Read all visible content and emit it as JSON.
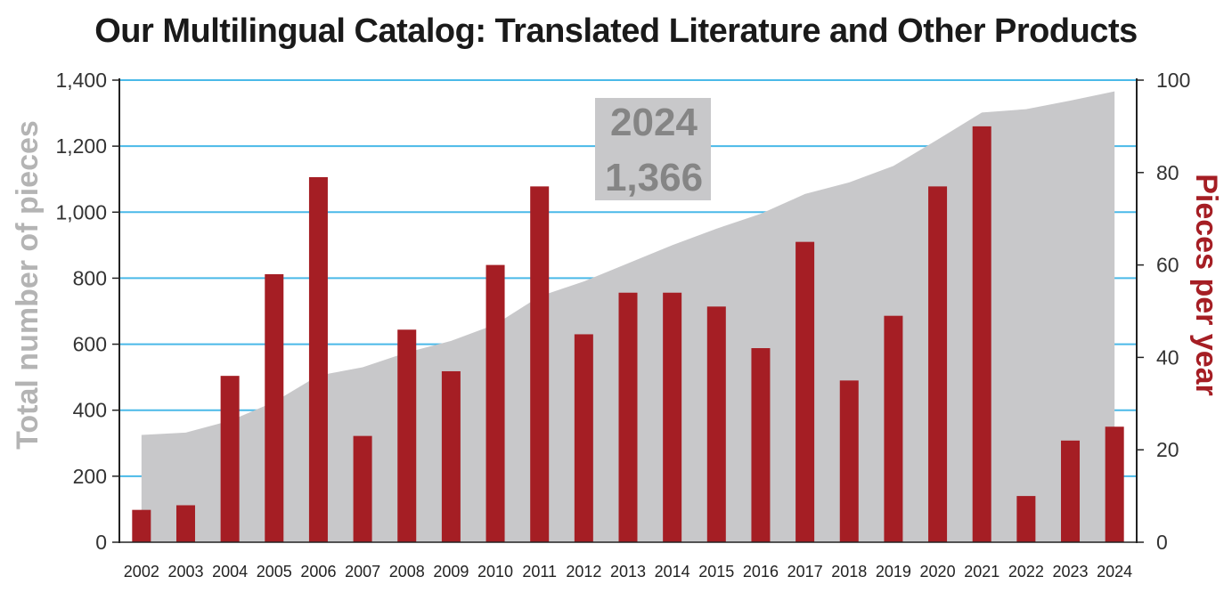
{
  "chart_data": {
    "type": "bar",
    "title": "Our Multilingual Catalog: Translated Literature and Other Products",
    "categories": [
      "2002",
      "2003",
      "2004",
      "2005",
      "2006",
      "2007",
      "2008",
      "2009",
      "2010",
      "2011",
      "2012",
      "2013",
      "2014",
      "2015",
      "2016",
      "2017",
      "2018",
      "2019",
      "2020",
      "2021",
      "2022",
      "2023",
      "2024"
    ],
    "series": [
      {
        "name": "Total number of pieces",
        "type": "area",
        "axis": "left",
        "color": "#c8c8ca",
        "values": [
          325,
          332,
          368,
          425,
          505,
          530,
          575,
          610,
          660,
          745,
          790,
          845,
          900,
          950,
          995,
          1055,
          1090,
          1140,
          1220,
          1302,
          1312,
          1338,
          1366
        ]
      },
      {
        "name": "Pieces per year",
        "type": "bar",
        "axis": "right",
        "color": "#a51e24",
        "values": [
          7,
          8,
          36,
          58,
          79,
          23,
          46,
          37,
          60,
          77,
          45,
          54,
          54,
          51,
          42,
          65,
          35,
          49,
          77,
          90,
          10,
          22,
          25
        ]
      }
    ],
    "ylabel_left": "Total number of pieces",
    "ylabel_right": "Pieces per year",
    "ylim_left": [
      0,
      1400
    ],
    "ylim_right": [
      0,
      100
    ],
    "yticks_left": [
      "0",
      "200",
      "400",
      "600",
      "800",
      "1,000",
      "1,200",
      "1,400"
    ],
    "yticks_right": [
      "0",
      "20",
      "40",
      "60",
      "80",
      "100"
    ],
    "grid": true,
    "gridline_color": "#4ab9e8",
    "annotation": {
      "year": "2024",
      "value": "1,366"
    }
  }
}
